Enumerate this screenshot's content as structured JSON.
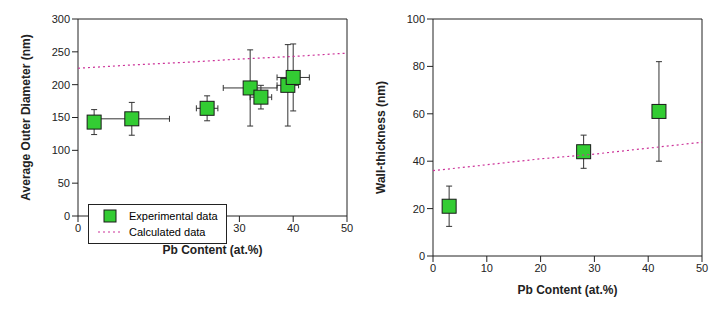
{
  "chart_data": [
    {
      "type": "scatter",
      "x_label": "Pb Content (at.%)",
      "y_label": "Average Outer Diameter (nm)",
      "xlim": [
        0,
        50
      ],
      "xticks": [
        0,
        10,
        20,
        30,
        40,
        50
      ],
      "ylim": [
        0,
        300
      ],
      "yticks": [
        0,
        50,
        100,
        150,
        200,
        250,
        300
      ],
      "legend": "lower left",
      "series": [
        {
          "name": "Experimental data",
          "type": "scatter",
          "color": "#33cc33",
          "marker": "square",
          "x": [
            3,
            10,
            24,
            32,
            34,
            39,
            40
          ],
          "values": [
            143,
            148,
            164,
            195,
            181,
            199,
            211
          ],
          "x_error": [
            0,
            7,
            2,
            5,
            2,
            2,
            3
          ],
          "y_error": [
            19,
            25,
            19,
            58,
            18,
            62,
            51
          ]
        },
        {
          "name": "Calculated data",
          "type": "line",
          "color": "#cc3399",
          "line_style": "dotted",
          "x": [
            0,
            10,
            20,
            30,
            40,
            50
          ],
          "values": [
            225,
            230,
            234,
            239,
            243,
            248
          ]
        }
      ]
    },
    {
      "type": "scatter",
      "x_label": "Pb Content (at.%)",
      "y_label": "Wall-thickness (nm)",
      "xlim": [
        0,
        50
      ],
      "xticks": [
        0,
        10,
        20,
        30,
        40,
        50
      ],
      "ylim": [
        0,
        100
      ],
      "yticks": [
        0,
        20,
        40,
        60,
        80,
        100
      ],
      "series": [
        {
          "type": "scatter",
          "color": "#33cc33",
          "marker": "square",
          "x": [
            3,
            28,
            42
          ],
          "values": [
            21,
            44,
            61
          ],
          "y_error": [
            8.5,
            7,
            21
          ]
        },
        {
          "type": "line",
          "color": "#cc3399",
          "line_style": "dotted",
          "x": [
            0,
            10,
            20,
            30,
            40,
            50
          ],
          "values": [
            36,
            38.5,
            41,
            43,
            45.5,
            48
          ]
        }
      ]
    }
  ]
}
